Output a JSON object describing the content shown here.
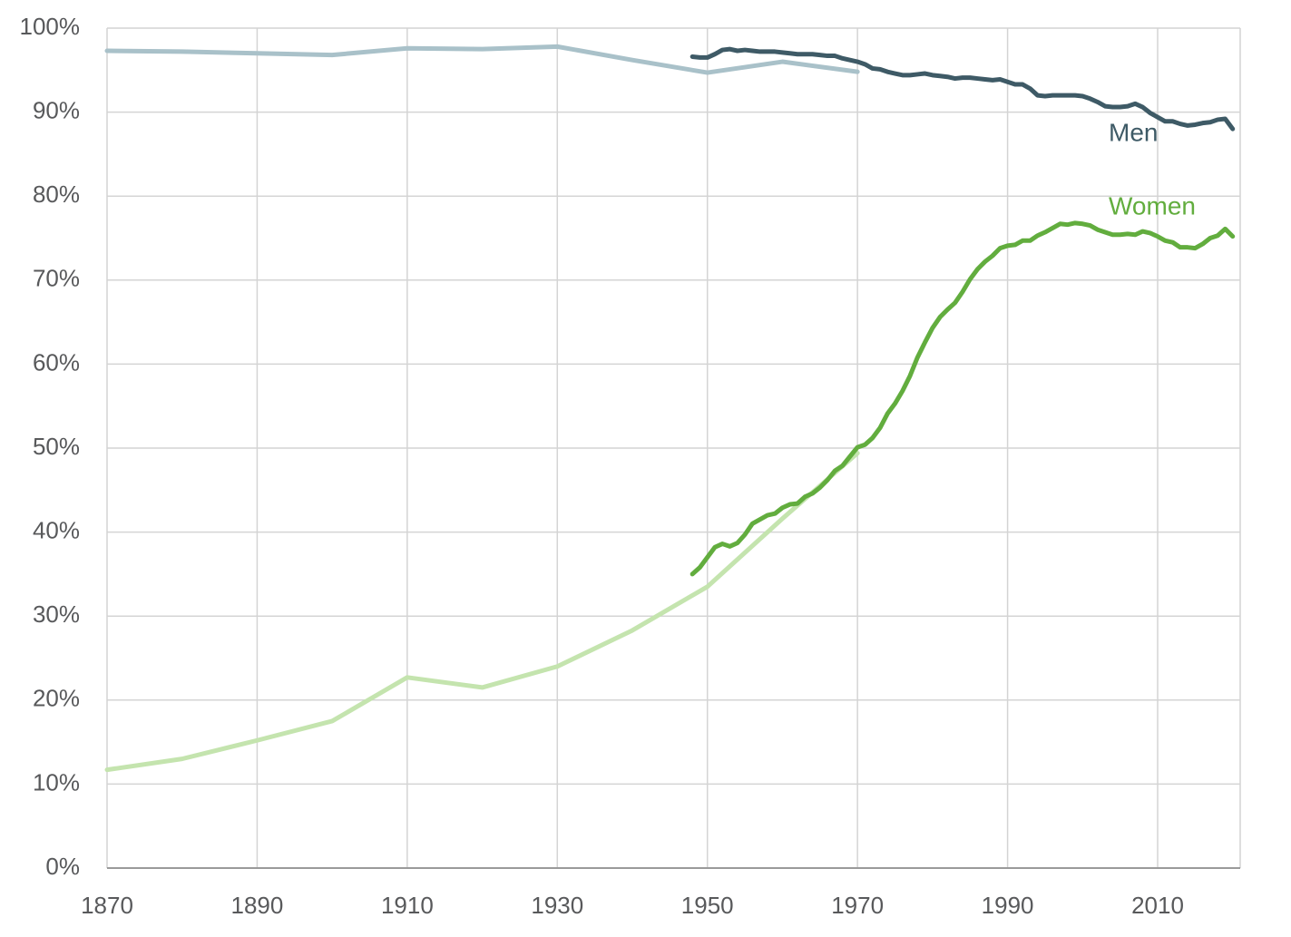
{
  "chart_data": {
    "type": "line",
    "xlim": [
      1870,
      2021
    ],
    "xticks": [
      1870,
      1890,
      1910,
      1930,
      1950,
      1970,
      1990,
      2010
    ],
    "ylim": [
      0,
      100
    ],
    "yticks": [
      {
        "value": 0,
        "label": "0%"
      },
      {
        "value": 10,
        "label": "10%"
      },
      {
        "value": 20,
        "label": "20%"
      },
      {
        "value": 30,
        "label": "30%"
      },
      {
        "value": 40,
        "label": "40%"
      },
      {
        "value": 50,
        "label": "50%"
      },
      {
        "value": 60,
        "label": "60%"
      },
      {
        "value": 70,
        "label": "70%"
      },
      {
        "value": 80,
        "label": "80%"
      },
      {
        "value": 90,
        "label": "90%"
      },
      {
        "value": 100,
        "label": "100%"
      }
    ],
    "grid": true,
    "series": [
      {
        "color": "#a9c1c9",
        "x": [
          1870,
          1880,
          1890,
          1900,
          1910,
          1920,
          1930,
          1940,
          1950,
          1960,
          1970
        ],
        "values": [
          97.3,
          97.2,
          97.0,
          96.8,
          97.6,
          97.5,
          97.8,
          96.2,
          94.7,
          96.0,
          94.8
        ]
      },
      {
        "color": "#c4e4ae",
        "x": [
          1870,
          1880,
          1890,
          1900,
          1910,
          1920,
          1930,
          1940,
          1950,
          1960,
          1970
        ],
        "values": [
          11.7,
          13.0,
          15.2,
          17.5,
          22.7,
          21.5,
          24.0,
          28.3,
          33.5,
          41.6,
          49.4
        ]
      },
      {
        "name": "Men",
        "color": "#3e5a66",
        "x": [
          1948,
          1949,
          1950,
          1951,
          1952,
          1953,
          1954,
          1955,
          1956,
          1957,
          1958,
          1959,
          1960,
          1961,
          1962,
          1963,
          1964,
          1965,
          1966,
          1967,
          1968,
          1969,
          1970,
          1971,
          1972,
          1973,
          1974,
          1975,
          1976,
          1977,
          1978,
          1979,
          1980,
          1981,
          1982,
          1983,
          1984,
          1985,
          1986,
          1987,
          1988,
          1989,
          1990,
          1991,
          1992,
          1993,
          1994,
          1995,
          1996,
          1997,
          1998,
          1999,
          2000,
          2001,
          2002,
          2003,
          2004,
          2005,
          2006,
          2007,
          2008,
          2009,
          2010,
          2011,
          2012,
          2013,
          2014,
          2015,
          2016,
          2017,
          2018,
          2019,
          2020
        ],
        "values": [
          96.6,
          96.5,
          96.5,
          96.9,
          97.4,
          97.5,
          97.3,
          97.4,
          97.3,
          97.2,
          97.2,
          97.2,
          97.1,
          97.0,
          96.9,
          96.9,
          96.9,
          96.8,
          96.7,
          96.7,
          96.4,
          96.2,
          96.0,
          95.7,
          95.2,
          95.1,
          94.8,
          94.6,
          94.4,
          94.4,
          94.5,
          94.6,
          94.4,
          94.3,
          94.2,
          94.0,
          94.1,
          94.1,
          94.0,
          93.9,
          93.8,
          93.9,
          93.6,
          93.3,
          93.3,
          92.8,
          92.0,
          91.9,
          92.0,
          92.0,
          92.0,
          92.0,
          91.9,
          91.6,
          91.2,
          90.7,
          90.6,
          90.6,
          90.7,
          91.0,
          90.6,
          89.9,
          89.4,
          88.9,
          88.9,
          88.6,
          88.4,
          88.5,
          88.7,
          88.8,
          89.1,
          89.2,
          88.0
        ]
      },
      {
        "name": "Women",
        "color": "#62ad3e",
        "x": [
          1948,
          1949,
          1950,
          1951,
          1952,
          1953,
          1954,
          1955,
          1956,
          1957,
          1958,
          1959,
          1960,
          1961,
          1962,
          1963,
          1964,
          1965,
          1966,
          1967,
          1968,
          1969,
          1970,
          1971,
          1972,
          1973,
          1974,
          1975,
          1976,
          1977,
          1978,
          1979,
          1980,
          1981,
          1982,
          1983,
          1984,
          1985,
          1986,
          1987,
          1988,
          1989,
          1990,
          1991,
          1992,
          1993,
          1994,
          1995,
          1996,
          1997,
          1998,
          1999,
          2000,
          2001,
          2002,
          2003,
          2004,
          2005,
          2006,
          2007,
          2008,
          2009,
          2010,
          2011,
          2012,
          2013,
          2014,
          2015,
          2016,
          2017,
          2018,
          2019,
          2020
        ],
        "values": [
          35.0,
          35.8,
          37.0,
          38.2,
          38.6,
          38.3,
          38.7,
          39.7,
          41.0,
          41.5,
          42.0,
          42.2,
          42.9,
          43.3,
          43.4,
          44.2,
          44.6,
          45.3,
          46.2,
          47.3,
          47.9,
          49.0,
          50.1,
          50.4,
          51.2,
          52.4,
          54.1,
          55.3,
          56.8,
          58.6,
          60.8,
          62.6,
          64.3,
          65.6,
          66.5,
          67.3,
          68.6,
          70.1,
          71.3,
          72.2,
          72.9,
          73.8,
          74.1,
          74.2,
          74.7,
          74.7,
          75.3,
          75.7,
          76.2,
          76.7,
          76.6,
          76.8,
          76.7,
          76.5,
          76.0,
          75.7,
          75.4,
          75.4,
          75.5,
          75.4,
          75.8,
          75.6,
          75.2,
          74.7,
          74.5,
          73.9,
          73.9,
          73.8,
          74.3,
          75.0,
          75.3,
          76.1,
          75.2
        ]
      }
    ]
  }
}
